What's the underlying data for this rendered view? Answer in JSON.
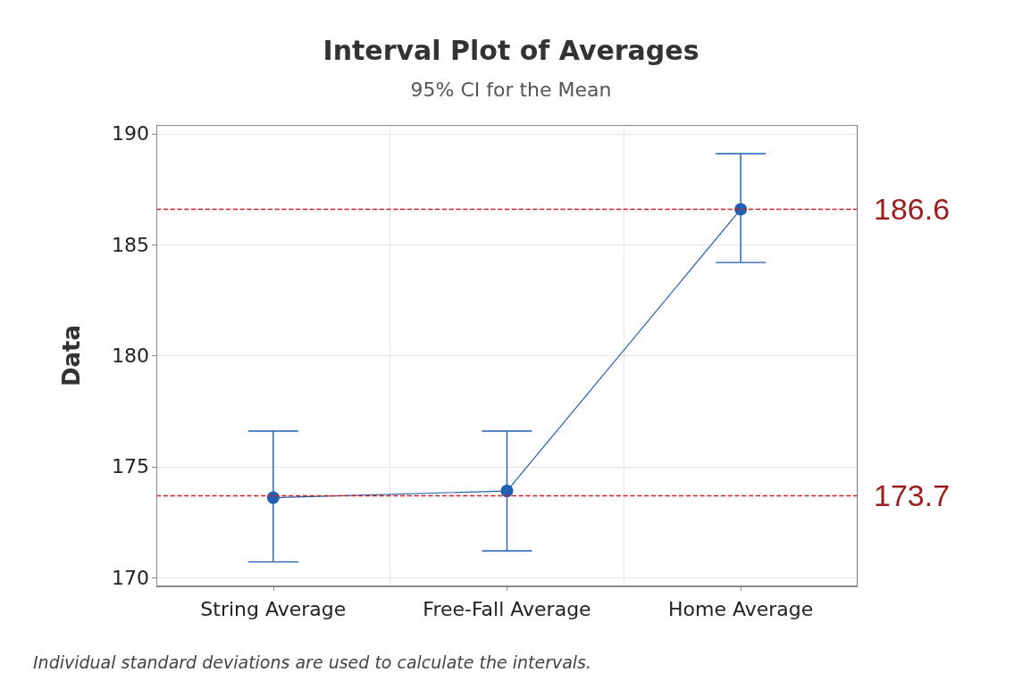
{
  "chart_data": {
    "type": "line",
    "title": "Interval Plot of Averages",
    "subtitle": "95% CI for the Mean",
    "ylabel": "Data",
    "categories": [
      "String Average",
      "Free-Fall Average",
      "Home Average"
    ],
    "series": [
      {
        "color": "#1f5fb4",
        "values": [
          173.6,
          173.9,
          186.6
        ],
        "errors": [
          [
            170.7,
            176.6
          ],
          [
            171.2,
            176.6
          ],
          [
            184.2,
            189.1
          ]
        ]
      }
    ],
    "ylim": [
      169.6,
      190.4
    ],
    "yticks": [
      170,
      175,
      180,
      185,
      190
    ],
    "grid": true,
    "marker": "circle",
    "line_style": "solid",
    "ref_lines": [
      {
        "axis": "y",
        "value": 186.6,
        "label": "186.6",
        "color": "#cc2222",
        "line_style": "dashed"
      },
      {
        "axis": "y",
        "value": 173.7,
        "label": "173.7",
        "color": "#cc2222",
        "line_style": "dashed"
      }
    ],
    "annotations": [
      "Individual standard deviations are used to calculate the intervals."
    ]
  }
}
